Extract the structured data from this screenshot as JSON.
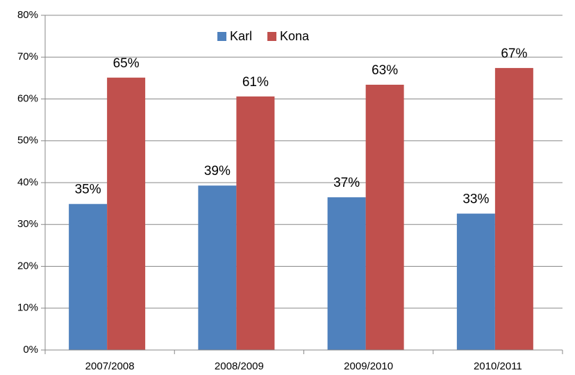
{
  "chart_data": {
    "type": "bar",
    "categories": [
      "2007/2008",
      "2008/2009",
      "2009/2010",
      "2010/2011"
    ],
    "series": [
      {
        "name": "Karl",
        "color": "#4f81bd",
        "values": [
          34.9,
          39.3,
          36.5,
          32.6
        ],
        "value_labels": [
          "35%",
          "39%",
          "37%",
          "33%"
        ]
      },
      {
        "name": "Kona",
        "color": "#c0504d",
        "values": [
          65.1,
          60.6,
          63.4,
          67.4
        ],
        "value_labels": [
          "65%",
          "61%",
          "63%",
          "67%"
        ]
      }
    ],
    "ylim": [
      0,
      80
    ],
    "yticks": [
      {
        "value": 0,
        "label": "0%"
      },
      {
        "value": 10,
        "label": "10%"
      },
      {
        "value": 20,
        "label": "20%"
      },
      {
        "value": 30,
        "label": "30%"
      },
      {
        "value": 40,
        "label": "40%"
      },
      {
        "value": 50,
        "label": "50%"
      },
      {
        "value": 60,
        "label": "60%"
      },
      {
        "value": 70,
        "label": "70%"
      },
      {
        "value": 80,
        "label": "80%"
      }
    ],
    "grid": true,
    "legend": "top"
  }
}
